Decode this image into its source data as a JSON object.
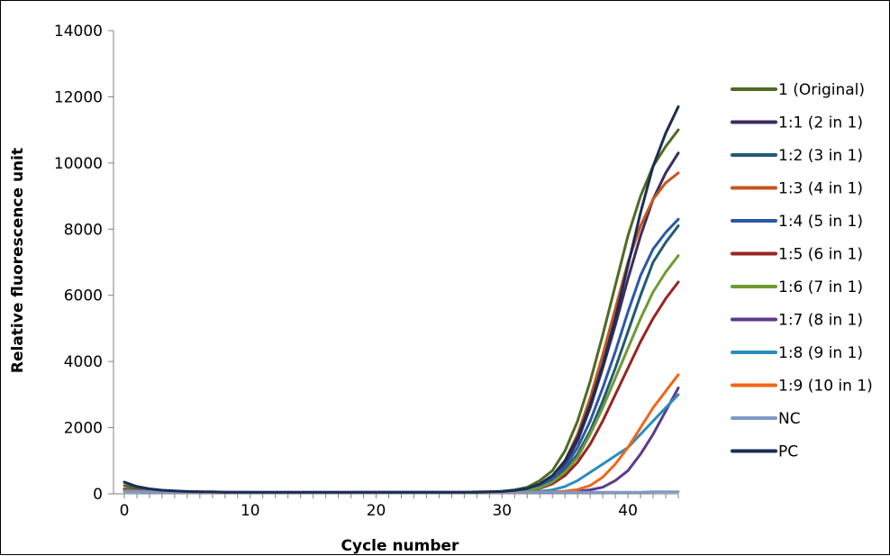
{
  "chart_data": {
    "type": "line",
    "xlabel": "Cycle number",
    "ylabel": "Relative fluorescence unit",
    "xlim": [
      0,
      44
    ],
    "ylim": [
      0,
      14000
    ],
    "xticks": [
      0,
      10,
      20,
      30,
      40
    ],
    "yticks": [
      0,
      2000,
      4000,
      6000,
      8000,
      10000,
      12000,
      14000
    ],
    "grid": false,
    "legend_position": "right",
    "x": [
      0,
      1,
      2,
      3,
      4,
      5,
      6,
      7,
      8,
      9,
      10,
      11,
      12,
      13,
      14,
      15,
      16,
      17,
      18,
      19,
      20,
      21,
      22,
      23,
      24,
      25,
      26,
      27,
      28,
      29,
      30,
      31,
      32,
      33,
      34,
      35,
      36,
      37,
      38,
      39,
      40,
      41,
      42,
      43,
      44
    ],
    "series": [
      {
        "name": "1 (Original)",
        "color": "#4e6b22",
        "values": [
          250,
          180,
          130,
          100,
          80,
          60,
          60,
          50,
          50,
          50,
          40,
          40,
          40,
          40,
          40,
          40,
          40,
          40,
          40,
          50,
          50,
          50,
          50,
          50,
          50,
          50,
          50,
          50,
          60,
          60,
          80,
          120,
          200,
          400,
          700,
          1300,
          2200,
          3400,
          4800,
          6300,
          7800,
          9000,
          9900,
          10500,
          11000
        ]
      },
      {
        "name": "1:1 (2 in 1)",
        "color": "#3d2b60",
        "values": [
          150,
          120,
          90,
          80,
          60,
          50,
          50,
          40,
          40,
          40,
          40,
          40,
          40,
          40,
          40,
          40,
          40,
          40,
          40,
          40,
          40,
          40,
          40,
          40,
          40,
          40,
          40,
          40,
          50,
          50,
          60,
          80,
          130,
          250,
          500,
          900,
          1600,
          2600,
          3800,
          5100,
          6500,
          7800,
          8900,
          9700,
          10300
        ]
      },
      {
        "name": "1:2 (3 in 1)",
        "color": "#215a74",
        "values": [
          120,
          100,
          80,
          70,
          60,
          50,
          50,
          40,
          40,
          40,
          40,
          40,
          40,
          40,
          40,
          40,
          40,
          40,
          40,
          40,
          40,
          40,
          40,
          40,
          40,
          40,
          40,
          40,
          40,
          50,
          60,
          70,
          110,
          200,
          380,
          700,
          1200,
          1900,
          2800,
          3800,
          4900,
          6000,
          7000,
          7600,
          8100
        ]
      },
      {
        "name": "1:3 (4 in 1)",
        "color": "#c4561d",
        "values": [
          130,
          110,
          90,
          70,
          60,
          50,
          50,
          40,
          40,
          40,
          40,
          40,
          40,
          40,
          40,
          40,
          40,
          40,
          40,
          40,
          40,
          40,
          40,
          40,
          40,
          40,
          40,
          40,
          40,
          50,
          60,
          80,
          130,
          260,
          520,
          1000,
          1800,
          2900,
          4200,
          5600,
          7000,
          8100,
          8900,
          9400,
          9700
        ]
      },
      {
        "name": "1:4 (5 in 1)",
        "color": "#2c58a8",
        "values": [
          110,
          100,
          80,
          70,
          60,
          50,
          50,
          40,
          40,
          40,
          40,
          40,
          40,
          40,
          40,
          40,
          40,
          40,
          40,
          40,
          40,
          40,
          40,
          40,
          40,
          40,
          40,
          40,
          40,
          50,
          60,
          70,
          120,
          230,
          450,
          800,
          1400,
          2200,
          3200,
          4300,
          5500,
          6600,
          7400,
          7900,
          8300
        ]
      },
      {
        "name": "1:5 (6 in 1)",
        "color": "#9a2323",
        "values": [
          100,
          90,
          80,
          70,
          60,
          50,
          50,
          40,
          40,
          40,
          40,
          40,
          40,
          40,
          40,
          40,
          40,
          40,
          40,
          40,
          40,
          40,
          40,
          40,
          40,
          40,
          40,
          40,
          40,
          40,
          50,
          60,
          90,
          160,
          300,
          550,
          950,
          1500,
          2200,
          3000,
          3800,
          4600,
          5300,
          5900,
          6400
        ]
      },
      {
        "name": "1:6 (7 in 1)",
        "color": "#6f9a32",
        "values": [
          100,
          90,
          80,
          70,
          60,
          50,
          50,
          40,
          40,
          40,
          40,
          40,
          40,
          40,
          40,
          40,
          40,
          40,
          40,
          40,
          40,
          40,
          40,
          40,
          40,
          40,
          40,
          40,
          40,
          40,
          50,
          60,
          100,
          180,
          350,
          650,
          1100,
          1800,
          2600,
          3500,
          4400,
          5300,
          6100,
          6700,
          7200
        ]
      },
      {
        "name": "1:7 (8 in 1)",
        "color": "#5b3a8c",
        "values": [
          90,
          80,
          70,
          60,
          50,
          50,
          40,
          40,
          40,
          40,
          40,
          40,
          40,
          40,
          40,
          40,
          40,
          40,
          40,
          40,
          40,
          40,
          40,
          40,
          40,
          40,
          40,
          40,
          40,
          40,
          40,
          40,
          40,
          40,
          50,
          60,
          80,
          120,
          200,
          400,
          700,
          1200,
          1800,
          2500,
          3200
        ]
      },
      {
        "name": "1:8 (9 in 1)",
        "color": "#2b8dbd",
        "values": [
          90,
          80,
          70,
          60,
          50,
          50,
          40,
          40,
          40,
          40,
          40,
          40,
          40,
          40,
          40,
          40,
          40,
          40,
          40,
          40,
          40,
          40,
          40,
          40,
          40,
          40,
          40,
          40,
          40,
          40,
          40,
          40,
          50,
          70,
          120,
          220,
          400,
          650,
          900,
          1150,
          1400,
          1800,
          2200,
          2600,
          3000
        ]
      },
      {
        "name": "1:9 (10 in 1)",
        "color": "#f0661a",
        "values": [
          80,
          70,
          60,
          50,
          50,
          40,
          40,
          40,
          40,
          40,
          40,
          40,
          40,
          40,
          40,
          40,
          40,
          40,
          40,
          40,
          40,
          40,
          40,
          40,
          40,
          40,
          40,
          40,
          40,
          40,
          40,
          40,
          40,
          50,
          60,
          80,
          130,
          250,
          500,
          900,
          1400,
          2000,
          2600,
          3100,
          3600
        ]
      },
      {
        "name": "NC",
        "color": "#7f99c8",
        "values": [
          60,
          60,
          50,
          50,
          50,
          50,
          50,
          50,
          50,
          50,
          50,
          50,
          50,
          50,
          50,
          50,
          50,
          50,
          50,
          50,
          50,
          50,
          50,
          50,
          50,
          50,
          50,
          50,
          50,
          50,
          50,
          50,
          50,
          50,
          50,
          50,
          50,
          50,
          50,
          50,
          50,
          50,
          60,
          60,
          60
        ]
      },
      {
        "name": "PC",
        "color": "#1a2d55",
        "values": [
          350,
          220,
          150,
          110,
          90,
          70,
          60,
          60,
          50,
          50,
          50,
          50,
          50,
          50,
          50,
          50,
          50,
          50,
          50,
          50,
          50,
          50,
          50,
          50,
          50,
          50,
          50,
          50,
          50,
          60,
          70,
          100,
          160,
          300,
          550,
          1000,
          1700,
          2700,
          3900,
          5300,
          6900,
          8500,
          9900,
          10900,
          11700
        ]
      }
    ]
  }
}
